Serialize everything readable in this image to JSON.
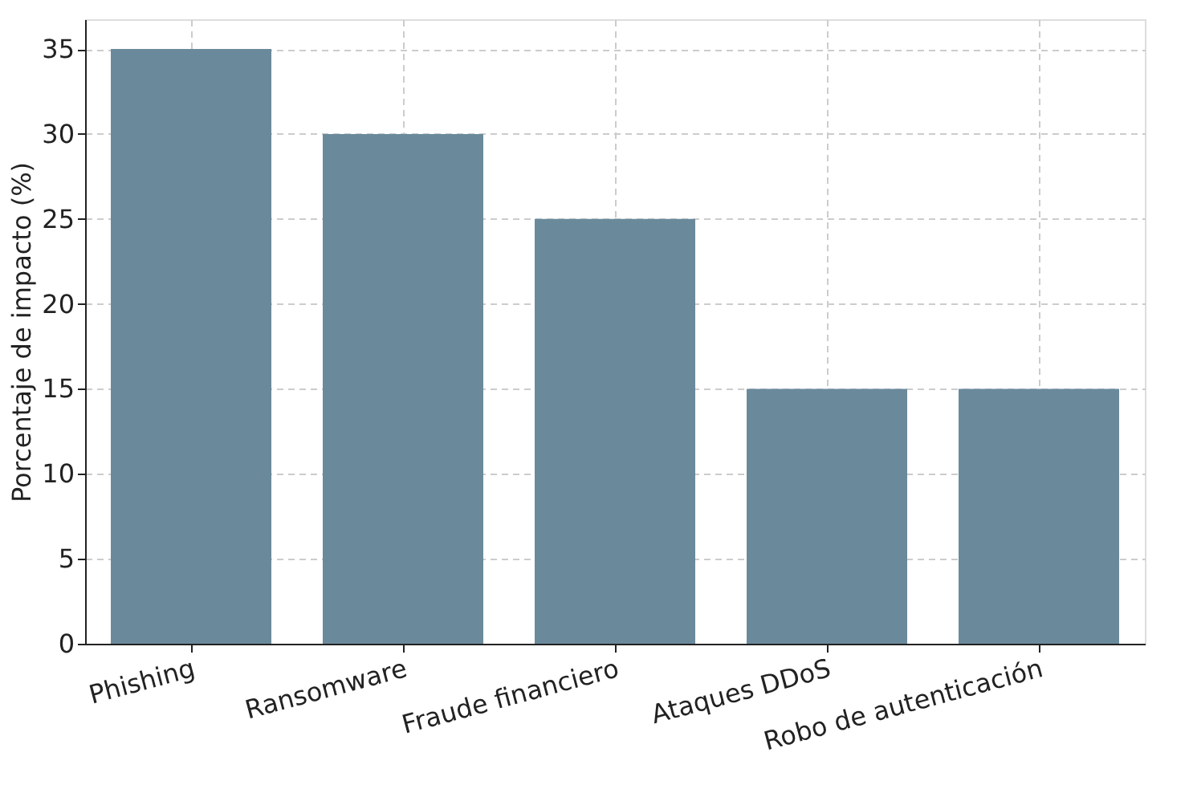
{
  "chart_data": {
    "type": "bar",
    "categories": [
      "Phishing",
      "Ransomware",
      "Fraude financiero",
      "Ataques DDoS",
      "Robo de autenticación"
    ],
    "values": [
      35,
      30,
      25,
      15,
      15
    ],
    "color": "#6a8a9c",
    "ylabel": "Porcentaje de impacto (%)",
    "ylim": [
      0,
      36.75
    ],
    "yticks": [
      0,
      5,
      10,
      15,
      20,
      25,
      30,
      35
    ],
    "grid": true
  }
}
